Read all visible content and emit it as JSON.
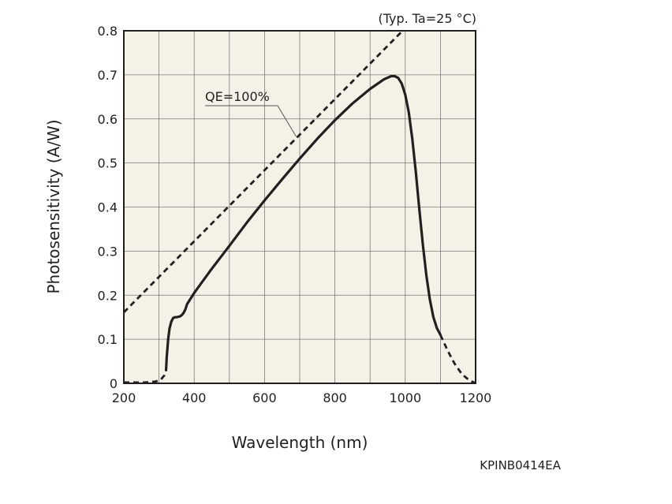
{
  "chart_data": {
    "type": "line",
    "condition_note": "(Typ. Ta=25 °C)",
    "xlabel": "Wavelength (nm)",
    "ylabel": "Photosensitivity (A/W)",
    "xlim": [
      200,
      1200
    ],
    "ylim": [
      0,
      0.8
    ],
    "x_ticks": [
      200,
      400,
      600,
      800,
      1000,
      1200
    ],
    "y_ticks": [
      0,
      0.1,
      0.2,
      0.3,
      0.4,
      0.5,
      0.6,
      0.7,
      0.8
    ],
    "y_tick_labels": [
      "0",
      "0.1",
      "0.2",
      "0.3",
      "0.4",
      "0.5",
      "0.6",
      "0.7",
      "0.8"
    ],
    "grid": true,
    "annotations": [
      {
        "text": "QE=100%",
        "points_to": {
          "x": 690,
          "y": 0.56
        }
      }
    ],
    "series": [
      {
        "style": "solid",
        "x": [
          320,
          322,
          326,
          330,
          335,
          340,
          345,
          350,
          355,
          360,
          365,
          370,
          375,
          380,
          400,
          450,
          500,
          550,
          600,
          650,
          700,
          750,
          800,
          850,
          900,
          940,
          960,
          970,
          980,
          990,
          1000,
          1010,
          1020,
          1030,
          1040,
          1050,
          1060,
          1070,
          1080,
          1090,
          1100
        ],
        "y": [
          0.03,
          0.06,
          0.1,
          0.125,
          0.14,
          0.148,
          0.15,
          0.15,
          0.151,
          0.152,
          0.155,
          0.16,
          0.168,
          0.18,
          0.205,
          0.26,
          0.312,
          0.365,
          0.415,
          0.463,
          0.51,
          0.555,
          0.597,
          0.635,
          0.668,
          0.69,
          0.697,
          0.697,
          0.693,
          0.68,
          0.655,
          0.615,
          0.555,
          0.48,
          0.395,
          0.315,
          0.245,
          0.19,
          0.15,
          0.125,
          0.11
        ]
      },
      {
        "style": "dashed",
        "x": [
          200,
          230,
          260,
          290,
          305,
          315,
          320
        ],
        "y": [
          0.002,
          0.002,
          0.002,
          0.004,
          0.008,
          0.018,
          0.03
        ]
      },
      {
        "style": "dashed",
        "x": [
          1100,
          1120,
          1140,
          1160,
          1180,
          1195,
          1200
        ],
        "y": [
          0.11,
          0.075,
          0.045,
          0.022,
          0.008,
          0.002,
          0.0
        ]
      },
      {
        "style": "dashed",
        "label": "QE=100%",
        "x": [
          200,
          990
        ],
        "y": [
          0.161,
          0.798
        ]
      }
    ]
  },
  "figure_code": "KPINB0414EA"
}
